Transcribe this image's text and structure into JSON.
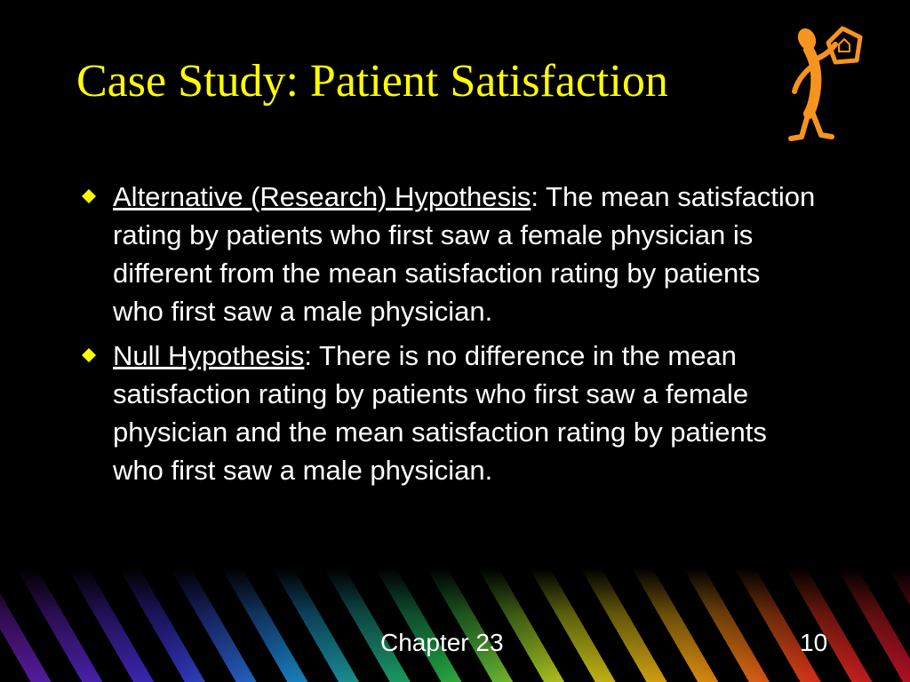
{
  "title": "Case Study: Patient Satisfaction",
  "bullets": [
    {
      "term": "Alternative (Research) Hypothesis",
      "text": ": The mean satisfaction rating by patients who first saw a female physician is different from the mean satisfaction rating by patients who first saw a male physician."
    },
    {
      "term": "Null Hypothesis",
      "text": ": There is no difference in the mean satisfaction rating by patients who first saw a female physician and the mean satisfaction rating by patients who first saw a male physician."
    }
  ],
  "footer": {
    "chapter": "Chapter 23",
    "page": "10"
  }
}
